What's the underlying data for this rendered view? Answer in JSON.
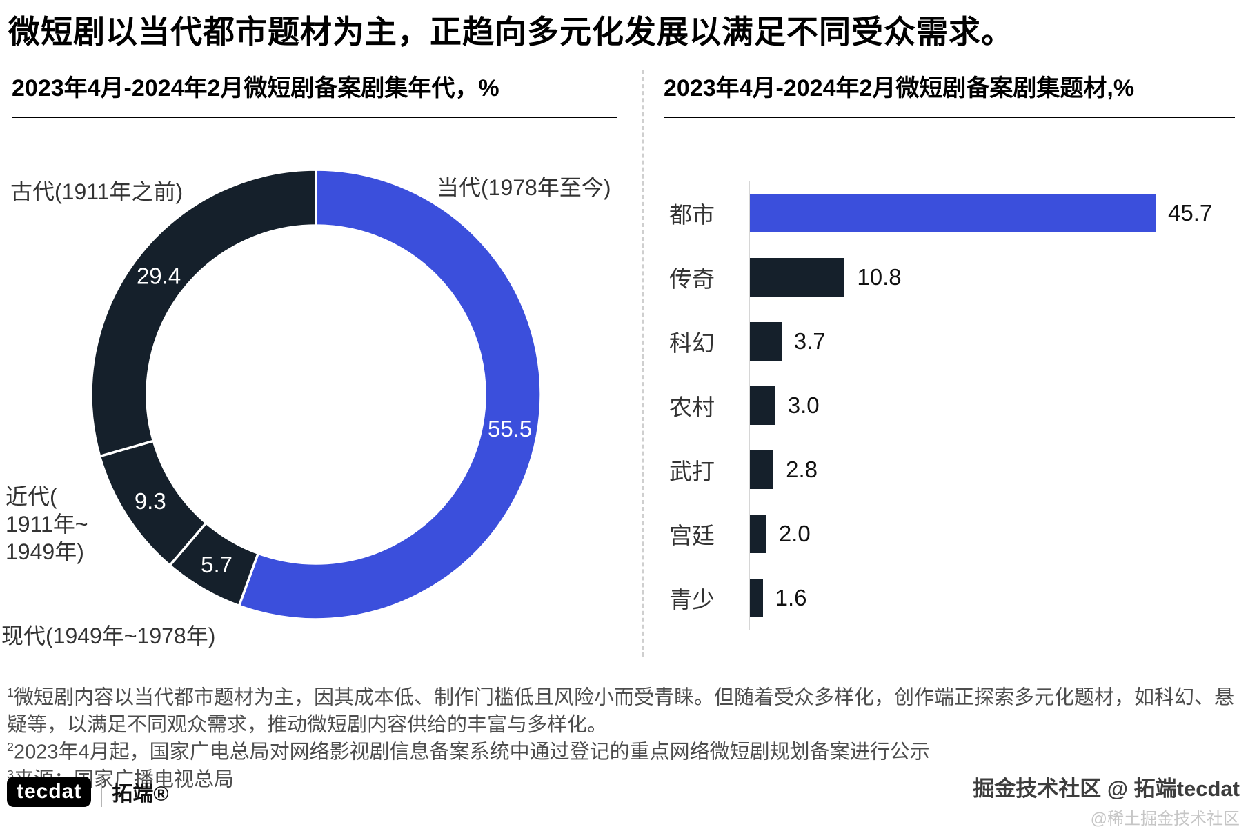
{
  "header": {
    "title": "微短剧以当代都市题材为主，正趋向多元化发展以满足不同受众需求。"
  },
  "colors": {
    "accent_blue": "#3B4FDC",
    "dark_navy": "#15202B",
    "divider_gray": "#CFCFCF",
    "axis_gray": "#D6D6D6",
    "footnote_gray": "#4D4D4D",
    "watermark_gray": "#C6C6C6"
  },
  "chart_data": [
    {
      "type": "pie",
      "subtype": "donut",
      "title": "2023年4月-2024年2月微短剧备案剧集年代，%",
      "unit": "%",
      "direction": "clockwise",
      "start_angle_deg": 0,
      "slices": [
        {
          "label": "当代(1978年至今)",
          "value": 55.5,
          "color": "#3B4FDC"
        },
        {
          "label": "现代(1949年~1978年)",
          "value": 5.7,
          "color": "#15202B"
        },
        {
          "label": "近代(1911年~1949年)",
          "label_wrapped": "近代(\n1911年~\n1949年)",
          "value": 9.3,
          "color": "#15202B"
        },
        {
          "label": "古代(1911年之前)",
          "value": 29.4,
          "color": "#15202B"
        }
      ],
      "value_labels": [
        "55.5",
        "5.7",
        "9.3",
        "29.4"
      ]
    },
    {
      "type": "bar",
      "orientation": "horizontal",
      "title": "2023年4月-2024年2月微短剧备案剧集题材,%",
      "unit": "%",
      "categories": [
        "都市",
        "传奇",
        "科幻",
        "农村",
        "武打",
        "宫廷",
        "青少"
      ],
      "values": [
        45.7,
        10.8,
        3.7,
        3.0,
        2.8,
        2.0,
        1.6
      ],
      "value_labels": [
        "45.7",
        "10.8",
        "3.7",
        "3.0",
        "2.8",
        "2.0",
        "1.6"
      ],
      "bar_colors": [
        "#3B4FDC",
        "#15202B",
        "#15202B",
        "#15202B",
        "#15202B",
        "#15202B",
        "#15202B"
      ],
      "xlim": [
        0,
        50
      ],
      "legend": false
    }
  ],
  "footnotes": [
    {
      "sup": "1",
      "text": "微短剧内容以当代都市题材为主，因其成本低、制作门槛低且风险小而受青睐。但随着受众多样化，创作端正探索多元化题材，如科幻、悬疑等，以满足不同观众需求，推动微短剧内容供给的丰富与多样化。"
    },
    {
      "sup": "2",
      "text": "2023年4月起，国家广电总局对网络影视剧信息备案系统中通过登记的重点网络微短剧规划备案进行公示"
    },
    {
      "sup": "3",
      "text": "来源：国家广播电视总局"
    }
  ],
  "branding": {
    "logo_text": "tecdat",
    "logo_suffix": "拓端®",
    "watermark_line1": "掘金技术社区 @ 拓端tecdat",
    "watermark_line2": "@稀土掘金技术社区"
  }
}
